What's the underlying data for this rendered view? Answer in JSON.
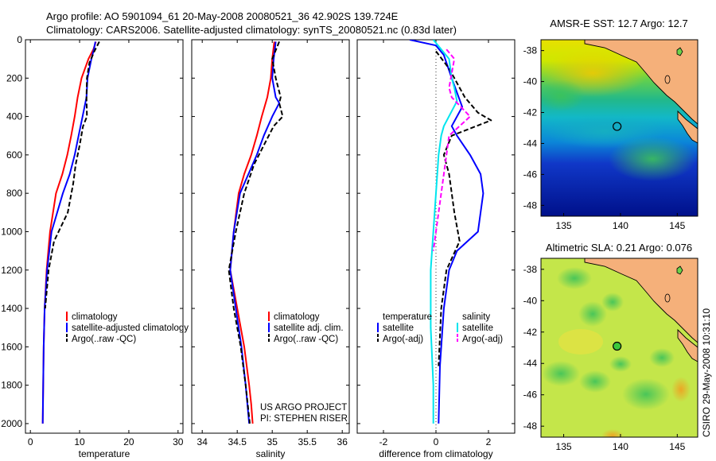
{
  "header": {
    "line1": "Argo profile: AO 5901094_61 20-May-2008 20080521_36 42.902S 139.724E",
    "line2": "Climatology: CARS2006. Satellite-adjusted climatology: synTS_20080521.nc (0.83d later)"
  },
  "colors": {
    "climatology": "#ff0000",
    "satellite": "#0000ff",
    "argo": "#000000",
    "temp_diff_argo": "#000000",
    "sal_satellite": "#00e5ee",
    "sal_argo": "#ff00ff",
    "land": "#f5b07a",
    "coast": "#000000",
    "marker": "#000000"
  },
  "chart_data": [
    {
      "type": "line",
      "id": "temperature",
      "xlabel": "temperature",
      "ylabel": "",
      "xlim": [
        -1,
        31
      ],
      "ylim": [
        2050,
        0
      ],
      "xticks": [
        "0",
        "10",
        "20",
        "30"
      ],
      "yticks": [
        "0",
        "200",
        "400",
        "600",
        "800",
        "1000",
        "1200",
        "1400",
        "1600",
        "1800",
        "2000"
      ],
      "legend": [
        "climatology",
        "satellite-adjusted climatology",
        "Argo(..raw -QC)"
      ],
      "legend_position": "lower-center",
      "series": [
        {
          "name": "climatology",
          "color": "climatology",
          "dash": false,
          "x": [
            13.3,
            12.8,
            11.8,
            10.4,
            9.6,
            9.0,
            8.3,
            7.5,
            6.5,
            5.2,
            4.0,
            3.3,
            2.9,
            2.7,
            2.6,
            2.5
          ],
          "y": [
            10,
            50,
            100,
            200,
            300,
            400,
            500,
            600,
            700,
            800,
            1000,
            1200,
            1400,
            1600,
            1800,
            2000
          ]
        },
        {
          "name": "satellite-adjusted climatology",
          "color": "satellite",
          "dash": false,
          "x": [
            13.2,
            12.9,
            12.4,
            11.6,
            11.4,
            10.6,
            9.8,
            9.0,
            8.0,
            6.6,
            4.3,
            3.4,
            2.9,
            2.7,
            2.6,
            2.5
          ],
          "y": [
            10,
            50,
            100,
            200,
            300,
            400,
            500,
            600,
            700,
            800,
            1000,
            1200,
            1400,
            1600,
            1800,
            2000
          ]
        },
        {
          "name": "Argo(..raw -QC)",
          "color": "argo",
          "dash": true,
          "x": [
            14.0,
            13.0,
            12.0,
            11.5,
            11.4,
            11.5,
            10.7,
            10.0,
            9.2,
            8.7,
            7.6,
            4.8,
            3.7,
            3.0
          ],
          "y": [
            10,
            60,
            120,
            200,
            300,
            400,
            450,
            550,
            650,
            750,
            900,
            1050,
            1200,
            1400
          ]
        }
      ]
    },
    {
      "type": "line",
      "id": "salinity",
      "xlabel": "salinity",
      "ylabel": "",
      "xlim": [
        33.85,
        36.1
      ],
      "ylim": [
        2050,
        0
      ],
      "xticks": [
        "34",
        "34.5",
        "35",
        "35.5",
        "36"
      ],
      "legend": [
        "climatology",
        "satellite adj. clim.",
        "Argo(..raw -QC)"
      ],
      "legend_position": "lower-right",
      "annotation": [
        "US ARGO PROJECT",
        "PI: STEPHEN RISER"
      ],
      "series": [
        {
          "name": "climatology",
          "color": "climatology",
          "dash": false,
          "x": [
            35.03,
            35.0,
            34.98,
            34.93,
            34.85,
            34.78,
            34.7,
            34.6,
            34.52,
            34.45,
            34.4,
            34.5,
            34.6,
            34.67,
            34.7,
            34.72
          ],
          "y": [
            10,
            100,
            200,
            300,
            400,
            500,
            600,
            700,
            800,
            1000,
            1200,
            1400,
            1600,
            1800,
            1900,
            2000
          ]
        },
        {
          "name": "satellite adj. clim.",
          "color": "satellite",
          "dash": false,
          "x": [
            35.05,
            35.02,
            35.0,
            35.05,
            35.1,
            35.0,
            34.88,
            34.78,
            34.66,
            34.54,
            34.45,
            34.4,
            34.48,
            34.56,
            34.62,
            34.67
          ],
          "y": [
            10,
            100,
            200,
            300,
            330,
            400,
            500,
            600,
            700,
            800,
            1000,
            1200,
            1400,
            1600,
            1800,
            2000
          ]
        },
        {
          "name": "Argo(..raw -QC)",
          "color": "argo",
          "dash": true,
          "x": [
            35.1,
            35.0,
            35.05,
            35.12,
            35.1,
            35.15,
            35.02,
            34.88,
            34.74,
            34.6,
            34.48,
            34.38,
            34.45,
            34.55,
            34.62,
            34.68
          ],
          "y": [
            10,
            100,
            200,
            300,
            330,
            400,
            450,
            550,
            650,
            800,
            1000,
            1200,
            1400,
            1600,
            1800,
            2000
          ]
        }
      ]
    },
    {
      "type": "line",
      "id": "difference",
      "xlabel": "difference from climatology",
      "ylabel": "",
      "xlim": [
        -3,
        3
      ],
      "ylim": [
        2050,
        0
      ],
      "xticks": [
        "-2",
        "0",
        "2"
      ],
      "legend": [
        "temperature",
        "satellite",
        "Argo(-adj)",
        "salinity",
        "satellite",
        "Argo(-adj)"
      ],
      "legend_position": "lower-center",
      "series": [
        {
          "name": "satellite",
          "group": "temperature",
          "color": "satellite",
          "dash": false,
          "x": [
            -1.0,
            0.0,
            0.3,
            0.6,
            1.0,
            0.6,
            0.8,
            1.3,
            1.7,
            1.8,
            1.6,
            0.8,
            0.5,
            0.3,
            0.15,
            0.1
          ],
          "y": [
            0,
            30,
            80,
            200,
            350,
            450,
            500,
            600,
            700,
            800,
            1000,
            1100,
            1200,
            1400,
            1700,
            2000
          ]
        },
        {
          "name": "Argo(-adj)",
          "group": "temperature",
          "color": "temp_diff_argo",
          "dash": true,
          "x": [
            0.0,
            0.5,
            0.9,
            1.1,
            1.6,
            2.1,
            0.6,
            0.3,
            0.5,
            0.7,
            0.9,
            0.4,
            0.2,
            0.1
          ],
          "y": [
            60,
            150,
            250,
            300,
            380,
            420,
            500,
            600,
            700,
            900,
            1050,
            1200,
            1400,
            1700
          ]
        },
        {
          "name": "satellite",
          "group": "salinity",
          "color": "sal_satellite",
          "dash": false,
          "x": [
            -0.1,
            0.5,
            0.6,
            0.7,
            0.8,
            0.3,
            0.2,
            0.1,
            0.0,
            -0.1,
            -0.2,
            -0.2,
            -0.1,
            -0.1
          ],
          "y": [
            0,
            100,
            200,
            250,
            320,
            450,
            500,
            600,
            800,
            1000,
            1200,
            1500,
            1800,
            2000
          ]
        },
        {
          "name": "Argo(-adj)",
          "group": "salinity",
          "color": "sal_argo",
          "dash": true,
          "x": [
            0.4,
            0.7,
            0.5,
            0.6,
            1.3,
            0.5,
            0.4,
            0.2,
            0.0,
            -0.1
          ],
          "y": [
            50,
            100,
            250,
            300,
            400,
            500,
            600,
            800,
            1000,
            1100
          ]
        }
      ]
    }
  ],
  "maps": [
    {
      "title": "AMSR-E SST: 12.7 Argo: 12.7",
      "xticks": [
        "135",
        "140",
        "145"
      ],
      "yticks": [
        "-38",
        "-40",
        "-42",
        "-44",
        "-46",
        "-48"
      ],
      "argo_lon": 139.7,
      "argo_lat": -42.9,
      "marker": "open-circle"
    },
    {
      "title": "Altimetric SLA: 0.21 Argo: 0.076",
      "xticks": [
        "135",
        "140",
        "145"
      ],
      "yticks": [
        "-38",
        "-40",
        "-42",
        "-44",
        "-46",
        "-48"
      ],
      "argo_lon": 139.7,
      "argo_lat": -42.9,
      "marker": "filled-circle"
    }
  ],
  "side_stamp": "CSIRO 29-May-2008 10:31:10"
}
